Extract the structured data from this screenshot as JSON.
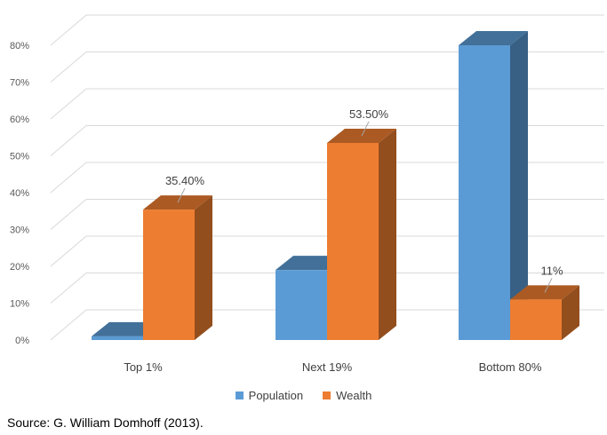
{
  "chart_data": {
    "type": "bar",
    "categories": [
      "Top 1%",
      "Next 19%",
      "Bottom 80%"
    ],
    "series": [
      {
        "name": "Population",
        "values": [
          1,
          19,
          80
        ],
        "color": "#5b9bd5",
        "labels": [
          "",
          "",
          ""
        ]
      },
      {
        "name": "Wealth",
        "values": [
          35.4,
          53.5,
          11
        ],
        "color": "#ed7d31",
        "labels": [
          "35.40%",
          "53.50%",
          "11%"
        ]
      }
    ],
    "y_ticks": [
      "0%",
      "10%",
      "20%",
      "30%",
      "40%",
      "50%",
      "60%",
      "70%",
      "80%"
    ],
    "ylim": [
      0,
      80
    ],
    "style": "3d-column",
    "grid": true,
    "legend": "bottom"
  },
  "source": "Source: G. William Domhoff (2013)."
}
